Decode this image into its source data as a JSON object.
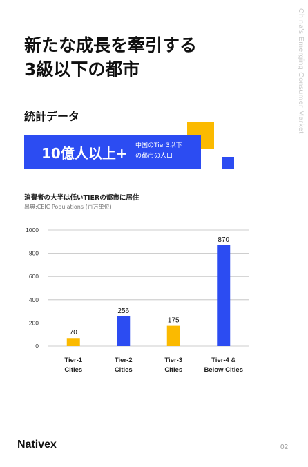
{
  "side_label": "China's Emerging Consumer Market",
  "title": {
    "line1": "新たな成長を牽引する",
    "line2": "3級以下の都市"
  },
  "subhead": "統計データ",
  "stat": {
    "value": "10億人以上+",
    "note_line1": "中国のTier3以下",
    "note_line2": "の都市の人口"
  },
  "colors": {
    "blue": "#2c4cf2",
    "yellow": "#fbba00"
  },
  "chart_data": {
    "type": "bar",
    "title": "消費者の大半は低いTIERの都市に居住",
    "source": "出典:CEIC Populations (百万単位)",
    "categories": [
      [
        "Tier-1",
        "Cities"
      ],
      [
        "Tier-2",
        "Cities"
      ],
      [
        "Tier-3",
        "Cities"
      ],
      [
        "Tier-4 &",
        "Below Cities"
      ]
    ],
    "values": [
      70,
      256,
      175,
      870
    ],
    "data_labels": [
      "70",
      "256",
      "175",
      "870"
    ],
    "bar_colors": [
      "#fbba00",
      "#2c4cf2",
      "#fbba00",
      "#2c4cf2"
    ],
    "yticks": [
      "0",
      "200",
      "400",
      "600",
      "800",
      "1000"
    ],
    "ylim": [
      0,
      1000
    ],
    "grid": true
  },
  "footer": {
    "logo": "Nativex",
    "page": "02"
  }
}
